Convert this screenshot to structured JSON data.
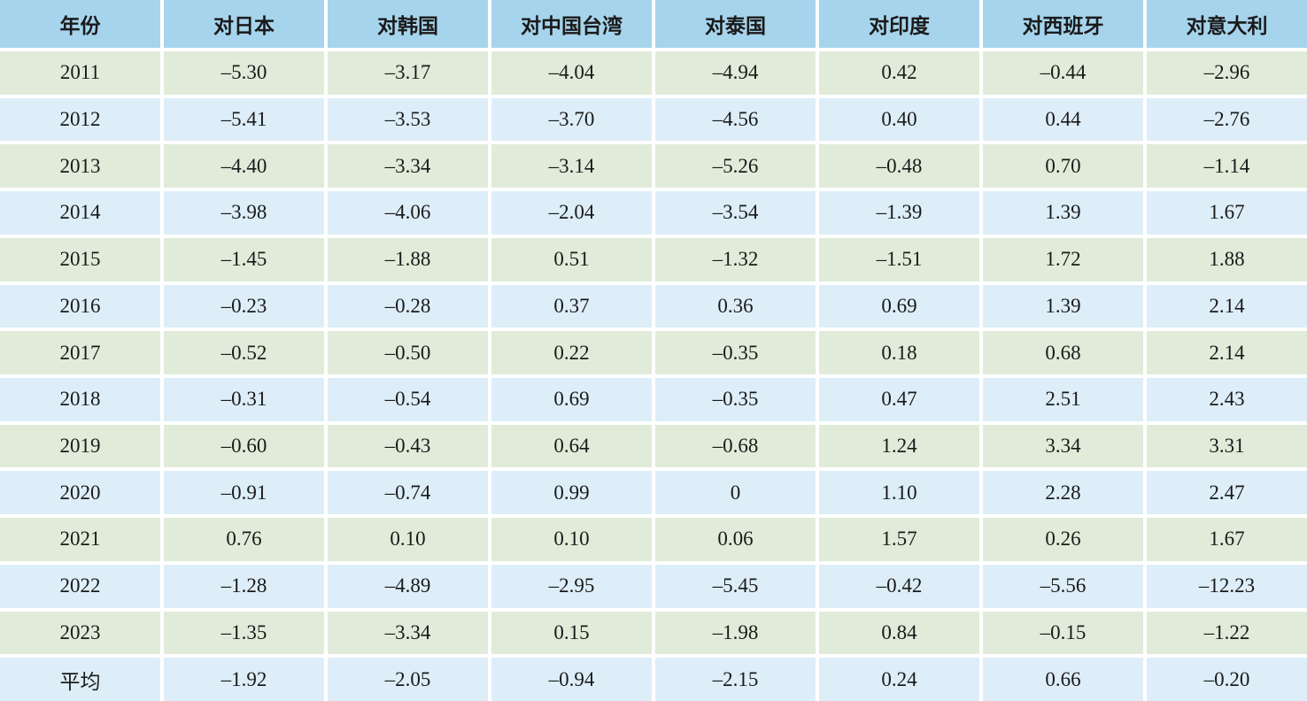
{
  "table": {
    "header": [
      "年份",
      "对日本",
      "对韩国",
      "对中国台湾",
      "对泰国",
      "对印度",
      "对西班牙",
      "对意大利"
    ],
    "rows": [
      {
        "year": "2011",
        "values": [
          "–5.30",
          "–3.17",
          "–4.04",
          "–4.94",
          "0.42",
          "–0.44",
          "–2.96"
        ]
      },
      {
        "year": "2012",
        "values": [
          "–5.41",
          "–3.53",
          "–3.70",
          "–4.56",
          "0.40",
          "0.44",
          "–2.76"
        ]
      },
      {
        "year": "2013",
        "values": [
          "–4.40",
          "–3.34",
          "–3.14",
          "–5.26",
          "–0.48",
          "0.70",
          "–1.14"
        ]
      },
      {
        "year": "2014",
        "values": [
          "–3.98",
          "–4.06",
          "–2.04",
          "–3.54",
          "–1.39",
          "1.39",
          "1.67"
        ]
      },
      {
        "year": "2015",
        "values": [
          "–1.45",
          "–1.88",
          "0.51",
          "–1.32",
          "–1.51",
          "1.72",
          "1.88"
        ]
      },
      {
        "year": "2016",
        "values": [
          "–0.23",
          "–0.28",
          "0.37",
          "0.36",
          "0.69",
          "1.39",
          "2.14"
        ]
      },
      {
        "year": "2017",
        "values": [
          "–0.52",
          "–0.50",
          "0.22",
          "–0.35",
          "0.18",
          "0.68",
          "2.14"
        ]
      },
      {
        "year": "2018",
        "values": [
          "–0.31",
          "–0.54",
          "0.69",
          "–0.35",
          "0.47",
          "2.51",
          "2.43"
        ]
      },
      {
        "year": "2019",
        "values": [
          "–0.60",
          "–0.43",
          "0.64",
          "–0.68",
          "1.24",
          "3.34",
          "3.31"
        ]
      },
      {
        "year": "2020",
        "values": [
          "–0.91",
          "–0.74",
          "0.99",
          "0",
          "1.10",
          "2.28",
          "2.47"
        ]
      },
      {
        "year": "2021",
        "values": [
          "0.76",
          "0.10",
          "0.10",
          "0.06",
          "1.57",
          "0.26",
          "1.67"
        ]
      },
      {
        "year": "2022",
        "values": [
          "–1.28",
          "–4.89",
          "–2.95",
          "–5.45",
          "–0.42",
          "–5.56",
          "–12.23"
        ]
      },
      {
        "year": "2023",
        "values": [
          "–1.35",
          "–3.34",
          "0.15",
          "–1.98",
          "0.84",
          "–0.15",
          "–1.22"
        ]
      },
      {
        "year": "平均",
        "values": [
          "–1.92",
          "–2.05",
          "–0.94",
          "–2.15",
          "0.24",
          "0.66",
          "–0.20"
        ]
      }
    ]
  },
  "colors": {
    "header_bg": "#a6d4ec",
    "row_green": "#e0ecd9",
    "row_blue": "#ddeef9",
    "gap": "#ffffff",
    "text": "#1a1a1a"
  }
}
